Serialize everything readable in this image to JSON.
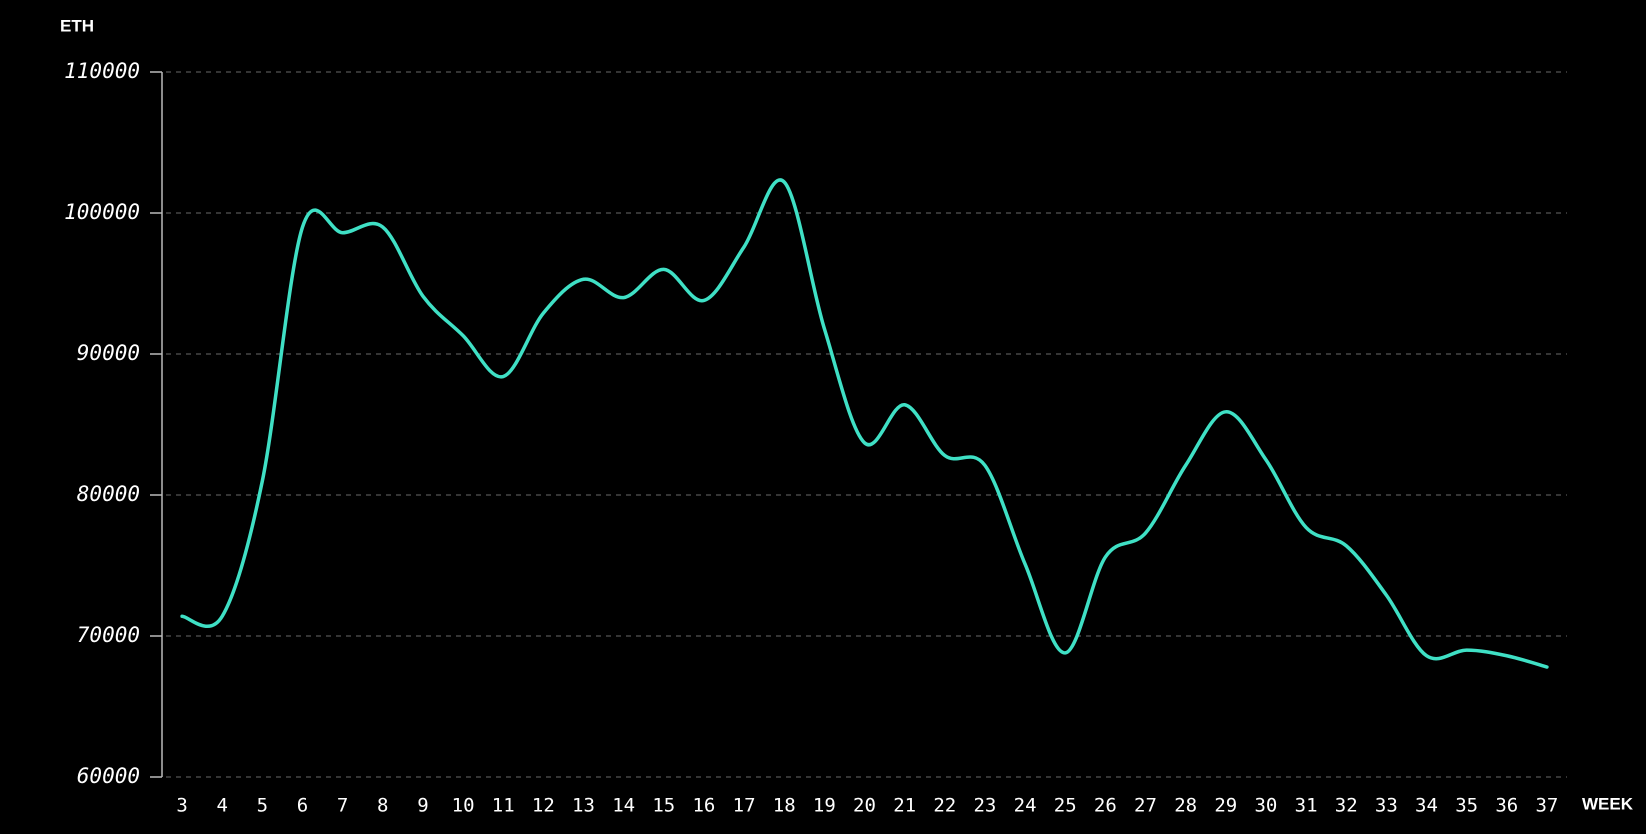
{
  "chart_data": {
    "type": "line",
    "y_label": "ETH",
    "x_label": "WEEK",
    "x": [
      3,
      4,
      5,
      6,
      7,
      8,
      9,
      10,
      11,
      12,
      13,
      14,
      15,
      16,
      17,
      18,
      19,
      20,
      21,
      22,
      23,
      24,
      25,
      26,
      27,
      28,
      29,
      30,
      31,
      32,
      33,
      34,
      35,
      36,
      37
    ],
    "series": [
      {
        "color": "#3fe0c5",
        "values": [
          71400,
          71400,
          81000,
          99000,
          98600,
          99000,
          94100,
          91300,
          88400,
          92900,
          95300,
          94000,
          96000,
          93800,
          97600,
          102200,
          91800,
          83700,
          86400,
          82800,
          82100,
          75100,
          68800,
          75600,
          77300,
          82100,
          85900,
          82500,
          77700,
          76400,
          72900,
          68600,
          69000,
          68600,
          67800
        ]
      }
    ],
    "xlim": [
      2.5,
      37.5
    ],
    "xticks": [
      3,
      4,
      5,
      6,
      7,
      8,
      9,
      10,
      11,
      12,
      13,
      14,
      15,
      16,
      17,
      18,
      19,
      20,
      21,
      22,
      23,
      24,
      25,
      26,
      27,
      28,
      29,
      30,
      31,
      32,
      33,
      34,
      35,
      36,
      37
    ],
    "ylim": [
      60000,
      110000
    ],
    "yticks": [
      60000,
      70000,
      80000,
      90000,
      100000,
      110000
    ],
    "grid": true
  }
}
